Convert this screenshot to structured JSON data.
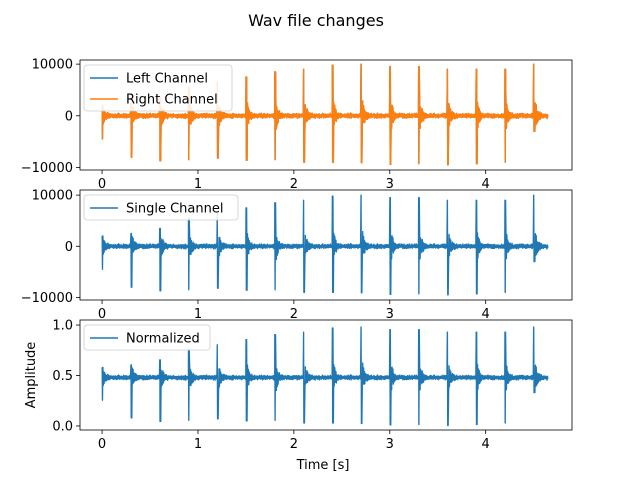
{
  "chart_data": {
    "type": "line",
    "title": "Wav file changes",
    "xlabel": "Time [s]",
    "colors": {
      "blue": "#1f77b4",
      "orange": "#ff7f0e"
    },
    "spikes": {
      "times": [
        0.0,
        0.3,
        0.6,
        0.9,
        1.2,
        1.5,
        1.8,
        2.1,
        2.4,
        2.7,
        3.0,
        3.3,
        3.6,
        3.9,
        4.2,
        4.5
      ],
      "pos_peaks": [
        2000,
        2500,
        3500,
        5500,
        6500,
        7500,
        8500,
        9000,
        9800,
        10000,
        9500,
        9500,
        9000,
        9000,
        9000,
        10000
      ],
      "neg_peaks": [
        -4500,
        -8000,
        -8700,
        -8500,
        -8200,
        -8600,
        -8500,
        -9000,
        -9000,
        -9100,
        -9400,
        -9300,
        -9500,
        -9300,
        -9000,
        -3000
      ]
    },
    "subplots": [
      {
        "xlim": [
          -0.23,
          4.9
        ],
        "ylim": [
          -10500,
          10800
        ],
        "xticks": [
          0,
          1,
          2,
          3,
          4
        ],
        "yticks": [
          -10000,
          0,
          10000
        ],
        "ylabel": "",
        "legend": "upper left",
        "series": [
          {
            "name": "Left Channel",
            "color": "#1f77b4",
            "scale": 1,
            "offset": 0
          },
          {
            "name": "Right Channel",
            "color": "#ff7f0e",
            "scale": 1,
            "offset": 0
          }
        ]
      },
      {
        "xlim": [
          -0.23,
          4.9
        ],
        "ylim": [
          -10500,
          11000
        ],
        "xticks": [
          0,
          1,
          2,
          3,
          4
        ],
        "yticks": [
          -10000,
          0,
          10000
        ],
        "ylabel": "",
        "legend": "upper left",
        "series": [
          {
            "name": "Single Channel",
            "color": "#1f77b4",
            "scale": 1,
            "offset": 0
          }
        ]
      },
      {
        "xlim": [
          -0.23,
          4.9
        ],
        "ylim": [
          -0.04,
          1.05
        ],
        "xticks": [
          0,
          1,
          2,
          3,
          4
        ],
        "yticks": [
          0.0,
          0.5,
          1.0
        ],
        "ylabel": "Amplitude",
        "legend": "upper left",
        "series": [
          {
            "name": "Normalized",
            "color": "#1f77b4",
            "scale": 5e-05,
            "offset": 0.48
          }
        ]
      }
    ]
  }
}
